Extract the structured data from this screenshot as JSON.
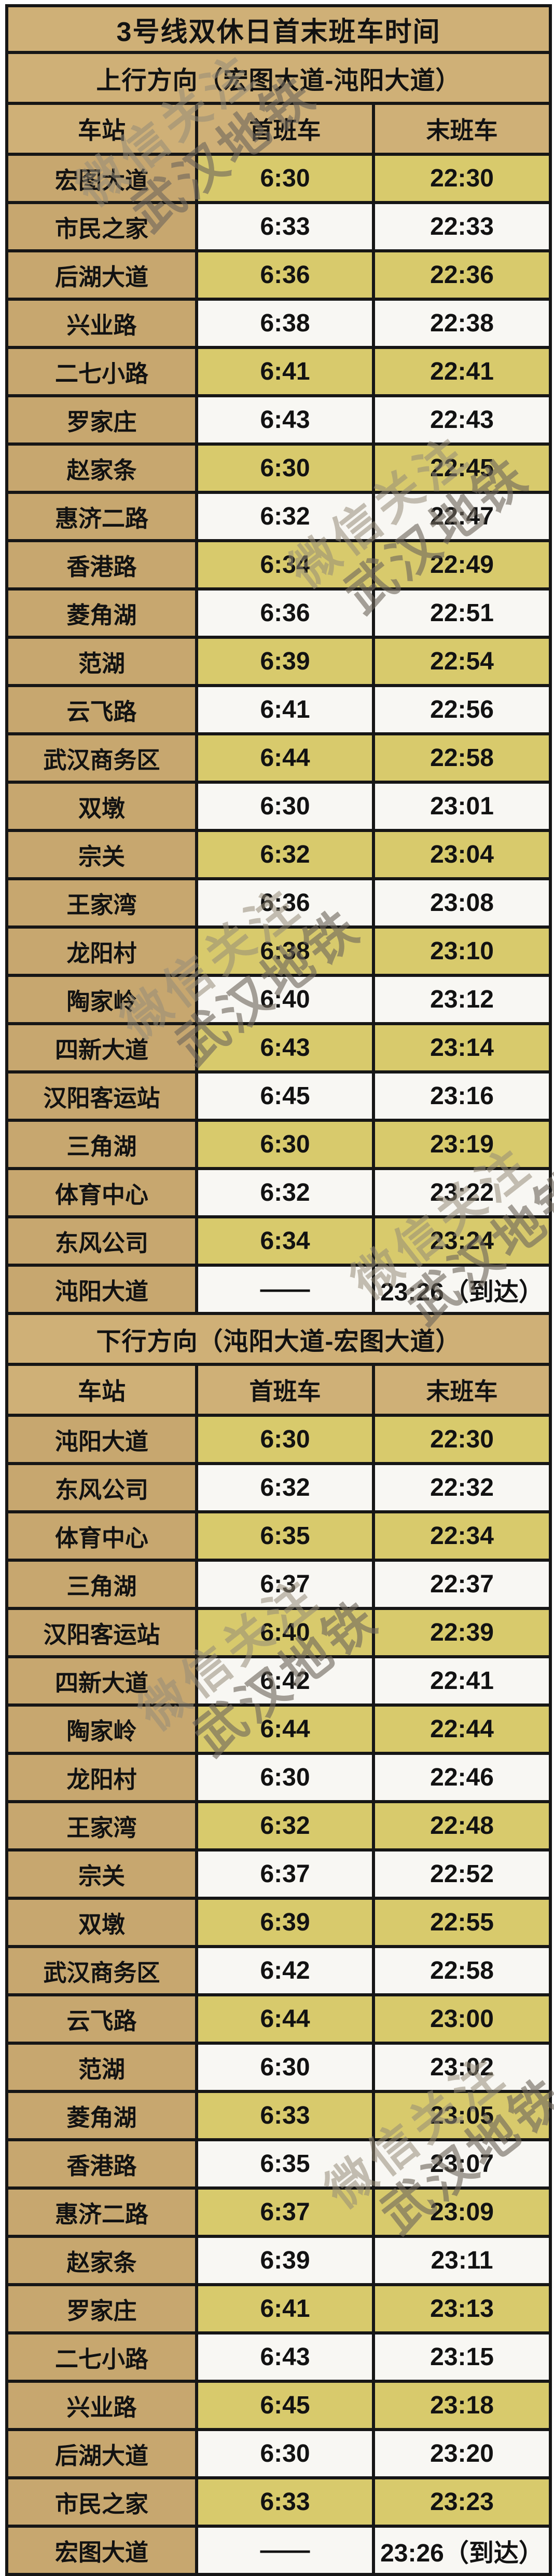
{
  "title": "3号线双休日首末班车时间",
  "columns": {
    "station": "车站",
    "first": "首班车",
    "last": "末班车"
  },
  "sections": [
    {
      "direction": "上行方向（宏图大道-沌阳大道）",
      "rows": [
        {
          "station": "宏图大道",
          "first": "6:30",
          "last": "22:30"
        },
        {
          "station": "市民之家",
          "first": "6:33",
          "last": "22:33"
        },
        {
          "station": "后湖大道",
          "first": "6:36",
          "last": "22:36"
        },
        {
          "station": "兴业路",
          "first": "6:38",
          "last": "22:38"
        },
        {
          "station": "二七小路",
          "first": "6:41",
          "last": "22:41"
        },
        {
          "station": "罗家庄",
          "first": "6:43",
          "last": "22:43"
        },
        {
          "station": "赵家条",
          "first": "6:30",
          "last": "22:45"
        },
        {
          "station": "惠济二路",
          "first": "6:32",
          "last": "22:47"
        },
        {
          "station": "香港路",
          "first": "6:34",
          "last": "22:49"
        },
        {
          "station": "菱角湖",
          "first": "6:36",
          "last": "22:51"
        },
        {
          "station": "范湖",
          "first": "6:39",
          "last": "22:54"
        },
        {
          "station": "云飞路",
          "first": "6:41",
          "last": "22:56"
        },
        {
          "station": "武汉商务区",
          "first": "6:44",
          "last": "22:58"
        },
        {
          "station": "双墩",
          "first": "6:30",
          "last": "23:01"
        },
        {
          "station": "宗关",
          "first": "6:32",
          "last": "23:04"
        },
        {
          "station": "王家湾",
          "first": "6:36",
          "last": "23:08"
        },
        {
          "station": "龙阳村",
          "first": "6:38",
          "last": "23:10"
        },
        {
          "station": "陶家岭",
          "first": "6:40",
          "last": "23:12"
        },
        {
          "station": "四新大道",
          "first": "6:43",
          "last": "23:14"
        },
        {
          "station": "汉阳客运站",
          "first": "6:45",
          "last": "23:16"
        },
        {
          "station": "三角湖",
          "first": "6:30",
          "last": "23:19"
        },
        {
          "station": "体育中心",
          "first": "6:32",
          "last": "23:22"
        },
        {
          "station": "东风公司",
          "first": "6:34",
          "last": "23:24"
        },
        {
          "station": "沌阳大道",
          "first": "——",
          "last": "23:26（到达）"
        }
      ]
    },
    {
      "direction": "下行方向（沌阳大道-宏图大道）",
      "rows": [
        {
          "station": "沌阳大道",
          "first": "6:30",
          "last": "22:30"
        },
        {
          "station": "东风公司",
          "first": "6:32",
          "last": "22:32"
        },
        {
          "station": "体育中心",
          "first": "6:35",
          "last": "22:34"
        },
        {
          "station": "三角湖",
          "first": "6:37",
          "last": "22:37"
        },
        {
          "station": "汉阳客运站",
          "first": "6:40",
          "last": "22:39"
        },
        {
          "station": "四新大道",
          "first": "6:42",
          "last": "22:41"
        },
        {
          "station": "陶家岭",
          "first": "6:44",
          "last": "22:44"
        },
        {
          "station": "龙阳村",
          "first": "6:30",
          "last": "22:46"
        },
        {
          "station": "王家湾",
          "first": "6:32",
          "last": "22:48"
        },
        {
          "station": "宗关",
          "first": "6:37",
          "last": "22:52"
        },
        {
          "station": "双墩",
          "first": "6:39",
          "last": "22:55"
        },
        {
          "station": "武汉商务区",
          "first": "6:42",
          "last": "22:58"
        },
        {
          "station": "云飞路",
          "first": "6:44",
          "last": "23:00"
        },
        {
          "station": "范湖",
          "first": "6:30",
          "last": "23:02"
        },
        {
          "station": "菱角湖",
          "first": "6:33",
          "last": "23:05"
        },
        {
          "station": "香港路",
          "first": "6:35",
          "last": "23:07"
        },
        {
          "station": "惠济二路",
          "first": "6:37",
          "last": "23:09"
        },
        {
          "station": "赵家条",
          "first": "6:39",
          "last": "23:11"
        },
        {
          "station": "罗家庄",
          "first": "6:41",
          "last": "23:13"
        },
        {
          "station": "二七小路",
          "first": "6:43",
          "last": "23:15"
        },
        {
          "station": "兴业路",
          "first": "6:45",
          "last": "23:18"
        },
        {
          "station": "后湖大道",
          "first": "6:30",
          "last": "23:20"
        },
        {
          "station": "市民之家",
          "first": "6:33",
          "last": "23:23"
        },
        {
          "station": "宏图大道",
          "first": "——",
          "last": "23:26（到达）"
        }
      ]
    }
  ],
  "watermark": {
    "line1": "微信关注",
    "line2": "武汉地铁"
  },
  "colors": {
    "header_bg": "#cfb077",
    "station_bg": "#c7a76f",
    "row_yellow": "#d8ca6c",
    "row_white": "#f8f7f3",
    "border": "#161616",
    "text": "#121212",
    "watermark_gray": "rgba(150,140,120,0.55)",
    "watermark_dark": "rgba(112,104,92,0.62)"
  }
}
